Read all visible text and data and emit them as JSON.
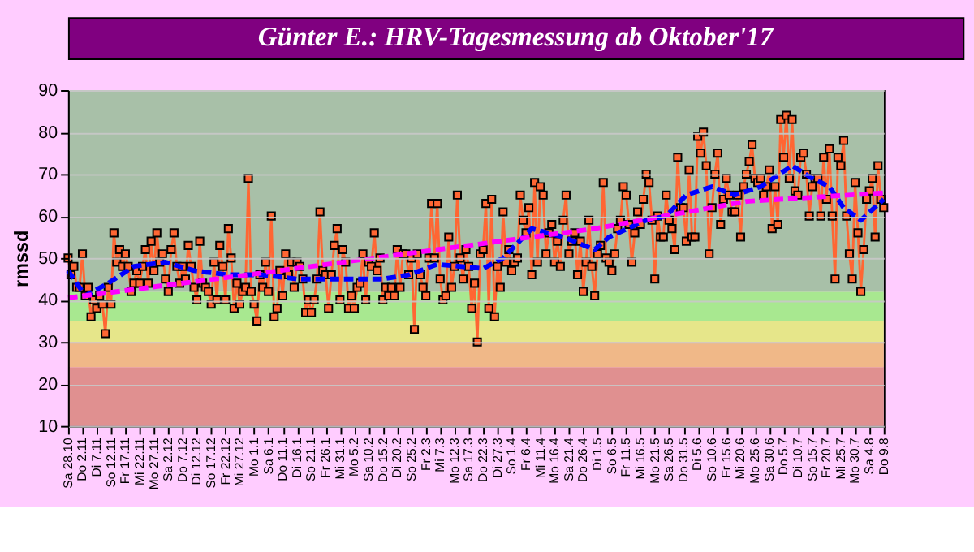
{
  "chart_data": {
    "type": "line",
    "title": "Günter E.: HRV-Tagesmessung ab Oktober'17",
    "ylabel": "rmssd",
    "x": [
      "2017-10-28",
      "2017-10-29",
      "2017-10-30",
      "2017-10-31",
      "2017-11-01",
      "2017-11-02",
      "2017-11-03",
      "2017-11-04",
      "2017-11-05",
      "2017-11-06",
      "2017-11-07",
      "2017-11-08",
      "2017-11-09",
      "2017-11-10",
      "2017-11-11",
      "2017-11-12",
      "2017-11-13",
      "2017-11-14",
      "2017-11-15",
      "2017-11-16",
      "2017-11-17",
      "2017-11-18",
      "2017-11-19",
      "2017-11-20",
      "2017-11-21",
      "2017-11-22",
      "2017-11-23",
      "2017-11-24",
      "2017-11-25",
      "2017-11-26",
      "2017-11-27",
      "2017-11-28",
      "2017-11-29",
      "2017-11-30",
      "2017-12-01",
      "2017-12-02",
      "2017-12-03",
      "2017-12-04",
      "2017-12-05",
      "2017-12-06",
      "2017-12-07",
      "2017-12-08",
      "2017-12-09",
      "2017-12-10",
      "2017-12-11",
      "2017-12-12",
      "2017-12-13",
      "2017-12-14",
      "2017-12-15",
      "2017-12-16",
      "2017-12-17",
      "2017-12-18",
      "2017-12-19",
      "2017-12-20",
      "2017-12-21",
      "2017-12-22",
      "2017-12-23",
      "2017-12-24",
      "2017-12-25",
      "2017-12-26",
      "2017-12-27",
      "2017-12-28",
      "2017-12-29",
      "2017-12-30",
      "2017-12-31",
      "2018-01-01",
      "2018-01-02",
      "2018-01-03",
      "2018-01-04",
      "2018-01-05",
      "2018-01-06",
      "2018-01-07",
      "2018-01-08",
      "2018-01-09",
      "2018-01-10",
      "2018-01-11",
      "2018-01-12",
      "2018-01-13",
      "2018-01-14",
      "2018-01-15",
      "2018-01-16",
      "2018-01-17",
      "2018-01-18",
      "2018-01-19",
      "2018-01-20",
      "2018-01-21",
      "2018-01-22",
      "2018-01-23",
      "2018-01-24",
      "2018-01-25",
      "2018-01-26",
      "2018-01-27",
      "2018-01-28",
      "2018-01-29",
      "2018-01-30",
      "2018-01-31",
      "2018-02-01",
      "2018-02-02",
      "2018-02-03",
      "2018-02-04",
      "2018-02-05",
      "2018-02-06",
      "2018-02-07",
      "2018-02-08",
      "2018-02-09",
      "2018-02-10",
      "2018-02-11",
      "2018-02-12",
      "2018-02-13",
      "2018-02-14",
      "2018-02-15",
      "2018-02-16",
      "2018-02-17",
      "2018-02-18",
      "2018-02-19",
      "2018-02-20",
      "2018-02-21",
      "2018-02-22",
      "2018-02-23",
      "2018-02-24",
      "2018-02-25",
      "2018-02-26",
      "2018-02-27",
      "2018-02-28",
      "2018-03-01",
      "2018-03-02",
      "2018-03-03",
      "2018-03-04",
      "2018-03-05",
      "2018-03-06",
      "2018-03-07",
      "2018-03-08",
      "2018-03-09",
      "2018-03-10",
      "2018-03-11",
      "2018-03-12",
      "2018-03-13",
      "2018-03-14",
      "2018-03-15",
      "2018-03-16",
      "2018-03-17",
      "2018-03-18",
      "2018-03-19",
      "2018-03-20",
      "2018-03-21",
      "2018-03-22",
      "2018-03-23",
      "2018-03-24",
      "2018-03-25",
      "2018-03-26",
      "2018-03-27",
      "2018-03-28",
      "2018-03-29",
      "2018-03-30",
      "2018-03-31",
      "2018-04-01",
      "2018-04-02",
      "2018-04-03",
      "2018-04-04",
      "2018-04-05",
      "2018-04-06",
      "2018-04-07",
      "2018-04-08",
      "2018-04-09",
      "2018-04-10",
      "2018-04-11",
      "2018-04-12",
      "2018-04-13",
      "2018-04-14",
      "2018-04-15",
      "2018-04-16",
      "2018-04-17",
      "2018-04-18",
      "2018-04-19",
      "2018-04-20",
      "2018-04-21",
      "2018-04-22",
      "2018-04-23",
      "2018-04-24",
      "2018-04-25",
      "2018-04-26",
      "2018-04-27",
      "2018-04-28",
      "2018-04-29",
      "2018-04-30",
      "2018-05-01",
      "2018-05-02",
      "2018-05-03",
      "2018-05-04",
      "2018-05-05",
      "2018-05-06",
      "2018-05-07",
      "2018-05-08",
      "2018-05-09",
      "2018-05-10",
      "2018-05-11",
      "2018-05-12",
      "2018-05-13",
      "2018-05-14",
      "2018-05-15",
      "2018-05-16",
      "2018-05-17",
      "2018-05-18",
      "2018-05-19",
      "2018-05-20",
      "2018-05-21",
      "2018-05-22",
      "2018-05-23",
      "2018-05-24",
      "2018-05-25",
      "2018-05-26",
      "2018-05-27",
      "2018-05-28",
      "2018-05-29",
      "2018-05-30",
      "2018-05-31",
      "2018-06-01",
      "2018-06-02",
      "2018-06-03",
      "2018-06-04",
      "2018-06-05",
      "2018-06-06",
      "2018-06-07",
      "2018-06-08",
      "2018-06-09",
      "2018-06-10",
      "2018-06-11",
      "2018-06-12",
      "2018-06-13",
      "2018-06-14",
      "2018-06-15",
      "2018-06-16",
      "2018-06-17",
      "2018-06-18",
      "2018-06-19",
      "2018-06-20",
      "2018-06-21",
      "2018-06-22",
      "2018-06-23",
      "2018-06-24",
      "2018-06-25",
      "2018-06-26",
      "2018-06-27",
      "2018-06-28",
      "2018-06-29",
      "2018-06-30",
      "2018-07-01",
      "2018-07-02",
      "2018-07-03",
      "2018-07-04",
      "2018-07-05",
      "2018-07-06",
      "2018-07-07",
      "2018-07-08",
      "2018-07-09",
      "2018-07-10",
      "2018-07-11",
      "2018-07-12",
      "2018-07-13",
      "2018-07-14",
      "2018-07-15",
      "2018-07-16",
      "2018-07-17",
      "2018-07-18",
      "2018-07-19",
      "2018-07-20",
      "2018-07-21",
      "2018-07-22",
      "2018-07-23",
      "2018-07-24",
      "2018-07-25",
      "2018-07-26",
      "2018-07-27",
      "2018-07-28",
      "2018-07-29",
      "2018-07-30",
      "2018-07-31",
      "2018-08-01",
      "2018-08-02",
      "2018-08-03",
      "2018-08-04",
      "2018-08-05",
      "2018-08-06",
      "2018-08-07",
      "2018-08-08",
      "2018-08-09"
    ],
    "series": [
      {
        "color": "#ff6633",
        "values": [
          50,
          46,
          48,
          43,
          43,
          51,
          41,
          43,
          36,
          40,
          38,
          41,
          39,
          32,
          43,
          39,
          56,
          49,
          52,
          48,
          51,
          48,
          42,
          44,
          47,
          44,
          48,
          52,
          44,
          54,
          47,
          56,
          49,
          51,
          45,
          42,
          52,
          56,
          48,
          44,
          48,
          45,
          53,
          48,
          43,
          40,
          54,
          44,
          43,
          42,
          39,
          49,
          40,
          53,
          48,
          40,
          57,
          50,
          38,
          44,
          39,
          42,
          43,
          69,
          42,
          39,
          35,
          46,
          43,
          49,
          42,
          60,
          36,
          38,
          47,
          41,
          51,
          46,
          49,
          43,
          49,
          48,
          45,
          37,
          40,
          37,
          40,
          45,
          61,
          47,
          46,
          38,
          46,
          53,
          57,
          40,
          52,
          49,
          38,
          41,
          38,
          43,
          44,
          51,
          40,
          49,
          48,
          56,
          47,
          50,
          40,
          43,
          41,
          43,
          41,
          52,
          43,
          51,
          51,
          46,
          50,
          33,
          51,
          46,
          43,
          41,
          50,
          63,
          50,
          63,
          45,
          40,
          41,
          55,
          43,
          48,
          65,
          50,
          45,
          52,
          48,
          38,
          44,
          30,
          51,
          52,
          63,
          38,
          64,
          36,
          48,
          43,
          61,
          49,
          52,
          47,
          49,
          50,
          65,
          59,
          56,
          62,
          46,
          68,
          49,
          67,
          65,
          51,
          56,
          58,
          49,
          54,
          48,
          59,
          65,
          51,
          54,
          56,
          46,
          54,
          42,
          49,
          59,
          48,
          41,
          51,
          53,
          68,
          50,
          49,
          47,
          51,
          57,
          59,
          67,
          65,
          58,
          49,
          56,
          61,
          58,
          64,
          70,
          68,
          59,
          45,
          60,
          55,
          55,
          65,
          59,
          57,
          52,
          74,
          62,
          62,
          54,
          71,
          55,
          55,
          79,
          75,
          80,
          72,
          51,
          62,
          70,
          75,
          58,
          64,
          69,
          65,
          61,
          61,
          65,
          55,
          67,
          70,
          73,
          77,
          69,
          68,
          69,
          65,
          67,
          71,
          57,
          67,
          58,
          83,
          74,
          84,
          69,
          83,
          66,
          65,
          74,
          75,
          70,
          60,
          67,
          69,
          69,
          60,
          74,
          64,
          76,
          60,
          45,
          74,
          72,
          78,
          60,
          51,
          45,
          68,
          56,
          42,
          52,
          64,
          66,
          69,
          55,
          72,
          64,
          62
        ]
      },
      {
        "color": "#0000ff",
        "marker": "none",
        "line_style": "dashed",
        "x": [
          "2017-10-28",
          "2017-11-03",
          "2017-11-11",
          "2017-11-20",
          "2017-12-01",
          "2017-12-11",
          "2017-12-23",
          "2018-01-04",
          "2018-01-16",
          "2018-01-28",
          "2018-02-15",
          "2018-02-24",
          "2018-03-06",
          "2018-03-22",
          "2018-03-29",
          "2018-04-08",
          "2018-04-19",
          "2018-04-30",
          "2018-05-05",
          "2018-05-18",
          "2018-05-25",
          "2018-06-01",
          "2018-06-10",
          "2018-06-18",
          "2018-06-27",
          "2018-07-08",
          "2018-07-15",
          "2018-07-21",
          "2018-07-26",
          "2018-08-01",
          "2018-08-09"
        ],
        "values": [
          47,
          41,
          44,
          48,
          49,
          47,
          46,
          46,
          45,
          45,
          45,
          46,
          48.5,
          47.5,
          50,
          57,
          55,
          52,
          55,
          59,
          60,
          65,
          67,
          65,
          67,
          72,
          69,
          67,
          62,
          59,
          64
        ]
      },
      {
        "color": "#ff00ff",
        "marker": "none",
        "line_style": "dashed",
        "x": [
          "2017-10-28",
          "2018-01-10",
          "2018-03-06",
          "2018-04-30",
          "2018-06-22",
          "2018-08-09"
        ],
        "values": [
          40.5,
          47,
          52,
          57,
          63.5,
          65.5
        ]
      }
    ],
    "xlim": [
      "2017-10-28",
      "2018-08-09"
    ],
    "xticks": [
      {
        "value": "2017-10-28",
        "label": "Sa 28.10"
      },
      {
        "value": "2017-11-02",
        "label": "Do 2.11"
      },
      {
        "value": "2017-11-07",
        "label": "Di 7.11"
      },
      {
        "value": "2017-11-12",
        "label": "So 12.11"
      },
      {
        "value": "2017-11-17",
        "label": "Fr 17.11"
      },
      {
        "value": "2017-11-22",
        "label": "Mi 22.11"
      },
      {
        "value": "2017-11-27",
        "label": "Mo 27.11"
      },
      {
        "value": "2017-12-02",
        "label": "Sa 2.12"
      },
      {
        "value": "2017-12-07",
        "label": "Do 7.12"
      },
      {
        "value": "2017-12-12",
        "label": "Di 12.12"
      },
      {
        "value": "2017-12-17",
        "label": "So 17.12"
      },
      {
        "value": "2017-12-22",
        "label": "Fr 22.12"
      },
      {
        "value": "2017-12-27",
        "label": "Mi 27.12"
      },
      {
        "value": "2018-01-01",
        "label": "Mo 1.1"
      },
      {
        "value": "2018-01-06",
        "label": "Sa 6.1"
      },
      {
        "value": "2018-01-11",
        "label": "Do 11.1"
      },
      {
        "value": "2018-01-16",
        "label": "Di 16.1"
      },
      {
        "value": "2018-01-21",
        "label": "So 21.1"
      },
      {
        "value": "2018-01-26",
        "label": "Fr 26.1"
      },
      {
        "value": "2018-01-31",
        "label": "Mi 31.1"
      },
      {
        "value": "2018-02-05",
        "label": "Mo 5.2"
      },
      {
        "value": "2018-02-10",
        "label": "Sa 10.2"
      },
      {
        "value": "2018-02-15",
        "label": "Do 15.2"
      },
      {
        "value": "2018-02-20",
        "label": "Di 20.2"
      },
      {
        "value": "2018-02-25",
        "label": "So 25.2"
      },
      {
        "value": "2018-03-02",
        "label": "Fr 2.3"
      },
      {
        "value": "2018-03-07",
        "label": "Mi 7.3"
      },
      {
        "value": "2018-03-12",
        "label": "Mo 12.3"
      },
      {
        "value": "2018-03-17",
        "label": "Sa 17.3"
      },
      {
        "value": "2018-03-22",
        "label": "Do 22.3"
      },
      {
        "value": "2018-03-27",
        "label": "Di 27.3"
      },
      {
        "value": "2018-04-01",
        "label": "So 1.4"
      },
      {
        "value": "2018-04-06",
        "label": "Fr 6.4"
      },
      {
        "value": "2018-04-11",
        "label": "Mi 11.4"
      },
      {
        "value": "2018-04-16",
        "label": "Mo 16.4"
      },
      {
        "value": "2018-04-21",
        "label": "Sa 21.4"
      },
      {
        "value": "2018-04-26",
        "label": "Do 26.4"
      },
      {
        "value": "2018-05-01",
        "label": "Di 1.5"
      },
      {
        "value": "2018-05-06",
        "label": "So 6.5"
      },
      {
        "value": "2018-05-11",
        "label": "Fr 11.5"
      },
      {
        "value": "2018-05-16",
        "label": "Mi 16.5"
      },
      {
        "value": "2018-05-21",
        "label": "Mo 21.5"
      },
      {
        "value": "2018-05-26",
        "label": "Sa 26.5"
      },
      {
        "value": "2018-05-31",
        "label": "Do 31.5"
      },
      {
        "value": "2018-06-05",
        "label": "Di 5.6"
      },
      {
        "value": "2018-06-10",
        "label": "So 10.6"
      },
      {
        "value": "2018-06-15",
        "label": "Fr 15.6"
      },
      {
        "value": "2018-06-20",
        "label": "Mi 20.6"
      },
      {
        "value": "2018-06-25",
        "label": "Mo 25.6"
      },
      {
        "value": "2018-06-30",
        "label": "Sa 30.6"
      },
      {
        "value": "2018-07-05",
        "label": "Do 5.7"
      },
      {
        "value": "2018-07-10",
        "label": "Di 10.7"
      },
      {
        "value": "2018-07-15",
        "label": "So 15.7"
      },
      {
        "value": "2018-07-20",
        "label": "Fr 20.7"
      },
      {
        "value": "2018-07-25",
        "label": "Mi 25.7"
      },
      {
        "value": "2018-07-30",
        "label": "Mo 30.7"
      },
      {
        "value": "2018-08-04",
        "label": "Sa 4.8"
      },
      {
        "value": "2018-08-09",
        "label": "Do 9.8"
      }
    ],
    "ylim": [
      10,
      90
    ],
    "yticks": [
      10,
      20,
      30,
      40,
      50,
      60,
      70,
      80,
      90
    ],
    "grid": "y",
    "marker": "square",
    "legend": false,
    "bands": [
      {
        "axis": "y",
        "from": 10,
        "to": 24,
        "color": "#e09090"
      },
      {
        "axis": "y",
        "from": 24,
        "to": 30,
        "color": "#f0b888"
      },
      {
        "axis": "y",
        "from": 30,
        "to": 35,
        "color": "#e6e68a"
      },
      {
        "axis": "y",
        "from": 35,
        "to": 42,
        "color": "#a8e890"
      },
      {
        "axis": "y",
        "from": 42,
        "to": 90,
        "color": "#a8c0a8"
      }
    ]
  }
}
